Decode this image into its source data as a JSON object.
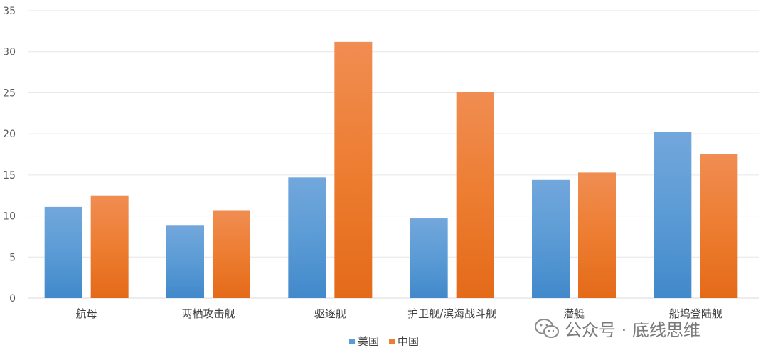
{
  "chart_data": {
    "type": "bar",
    "categories": [
      "航母",
      "两栖攻击舰",
      "驱逐舰",
      "护卫舰/滨海战斗舰",
      "潜艇",
      "船坞登陆舰"
    ],
    "series": [
      {
        "name": "美国",
        "color": "#5b9bd5",
        "values": [
          11.1,
          8.9,
          14.7,
          9.7,
          14.4,
          20.2
        ]
      },
      {
        "name": "中国",
        "color": "#ed7d31",
        "values": [
          12.5,
          10.7,
          31.2,
          25.1,
          15.3,
          17.5
        ]
      }
    ],
    "title": "",
    "xlabel": "",
    "ylabel": "",
    "ylim": [
      0,
      35
    ],
    "yticks": [
      0,
      5,
      10,
      15,
      20,
      25,
      30,
      35
    ],
    "grid": true,
    "legend_position": "bottom"
  },
  "watermark": {
    "text": "公众号 · 底线思维",
    "icon": "wechat-icon"
  }
}
